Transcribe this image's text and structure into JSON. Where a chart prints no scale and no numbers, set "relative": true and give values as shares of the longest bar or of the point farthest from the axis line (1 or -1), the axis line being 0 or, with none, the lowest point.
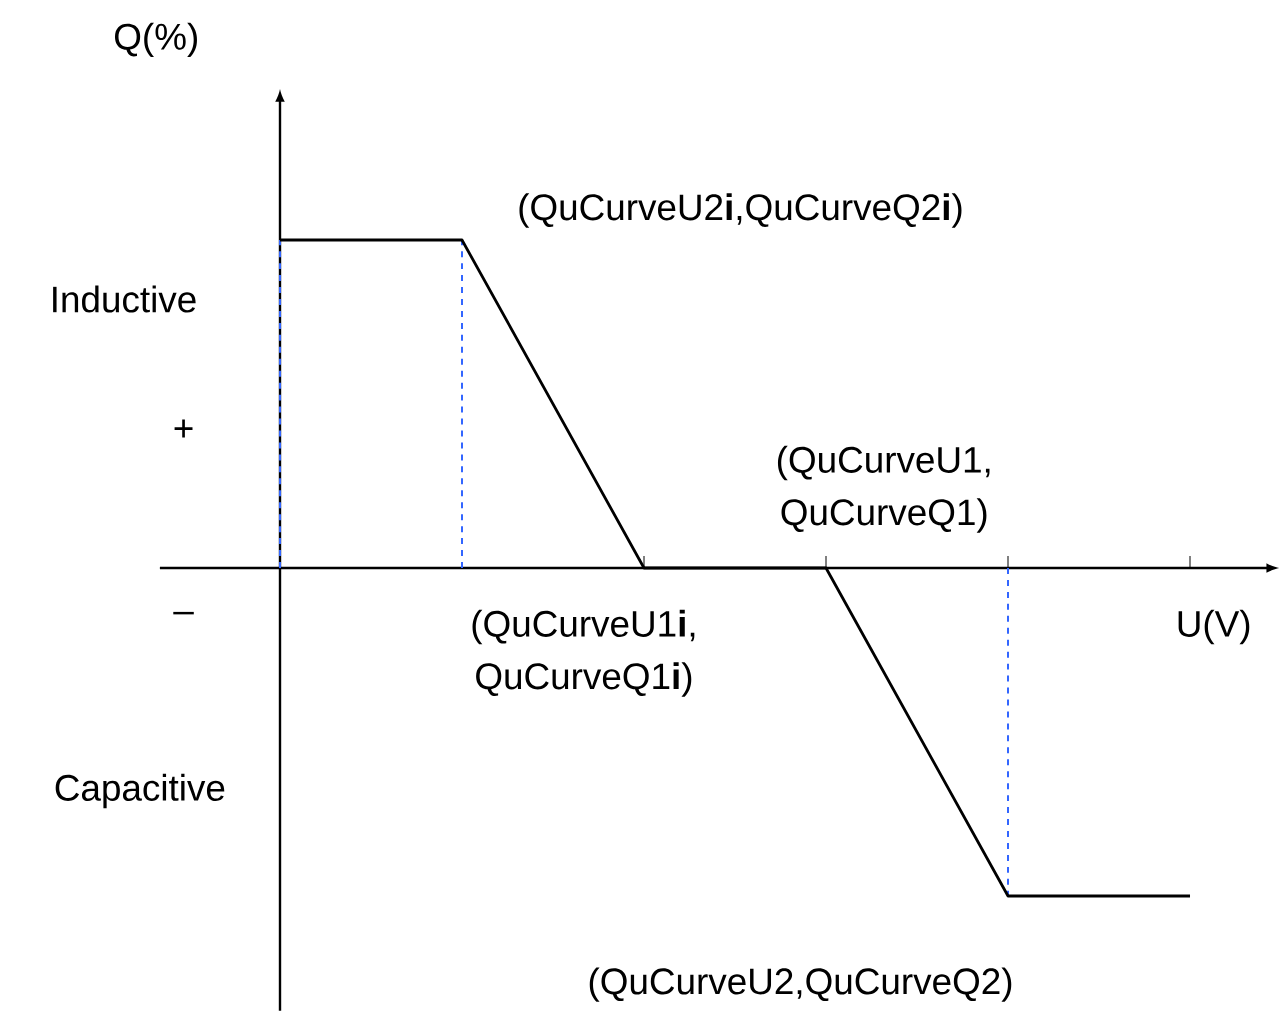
{
  "chart_data": {
    "type": "line",
    "relative": true,
    "xlabel": "U(V)",
    "ylabel": "Q(%)",
    "categories": [
      null,
      null,
      null,
      null,
      null,
      null
    ],
    "series": [
      {
        "color": "#000000",
        "values": [
          1,
          1,
          0,
          0,
          -1,
          -1
        ]
      }
    ],
    "marker": "none",
    "line_style": "solid",
    "grid": false,
    "annotations": [
      "Inductive",
      "+",
      "–",
      "Capacitive",
      "(QuCurveU2**i**,QuCurveQ2**i**)",
      "(QuCurveU1,",
      "QuCurveQ1)",
      "(QuCurveU1**i**,",
      "QuCurveQ1**i**)",
      "(QuCurveU2,QuCurveQ2)"
    ]
  }
}
